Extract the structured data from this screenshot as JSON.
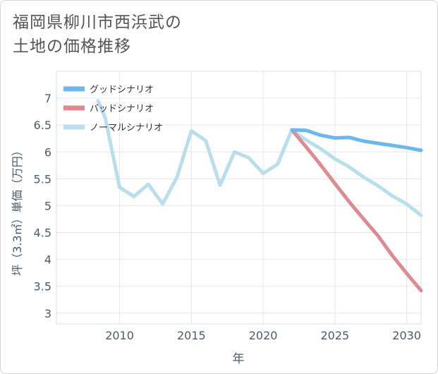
{
  "header": {
    "title_line1": "福岡県柳川市西浜武の",
    "title_line2": "土地の価格推移"
  },
  "chart_data": {
    "type": "line",
    "title": "福岡県柳川市西浜武の土地の価格推移",
    "xlabel": "年",
    "ylabel": "坪（3.3㎡）単価（万円）",
    "xlim": [
      2005.6,
      2031
    ],
    "ylim": [
      2.8,
      7.5
    ],
    "x_ticks": [
      2010,
      2015,
      2020,
      2025,
      2030
    ],
    "x_tick_labels": [
      "2010",
      "2015",
      "2020",
      "2025",
      "2030"
    ],
    "y_ticks": [
      3,
      3.5,
      4,
      4.5,
      5,
      5.5,
      6,
      6.5,
      7
    ],
    "y_tick_labels": [
      "3",
      "3.5",
      "4",
      "4.5",
      "5",
      "5.5",
      "6",
      "6.5",
      "7"
    ],
    "grid": true,
    "legend_position": "top-left",
    "series": [
      {
        "name": "グッドシナリオ",
        "color": "#6bb8ef",
        "x": [
          2022,
          2023,
          2024,
          2025,
          2026,
          2027,
          2028,
          2029,
          2030,
          2031
        ],
        "y": [
          6.41,
          6.4,
          6.31,
          6.26,
          6.27,
          6.2,
          6.16,
          6.12,
          6.08,
          6.03
        ]
      },
      {
        "name": "バッドシナリオ",
        "color": "#dd8a91",
        "x": [
          2022,
          2023,
          2024,
          2025,
          2026,
          2027,
          2028,
          2029,
          2030,
          2031
        ],
        "y": [
          6.41,
          6.09,
          5.76,
          5.41,
          5.07,
          4.75,
          4.44,
          4.07,
          3.74,
          3.42
        ]
      },
      {
        "name": "ノーマルシナリオ",
        "color": "#badfec",
        "x": [
          2008.5,
          2009,
          2010,
          2011,
          2012,
          2013,
          2014,
          2015,
          2016,
          2017,
          2018,
          2019,
          2020,
          2021,
          2022,
          2023,
          2024,
          2025,
          2026,
          2027,
          2028,
          2029,
          2030,
          2031
        ],
        "y": [
          6.95,
          6.63,
          5.34,
          5.17,
          5.4,
          5.03,
          5.53,
          6.39,
          6.21,
          5.38,
          6.0,
          5.89,
          5.6,
          5.77,
          6.41,
          6.22,
          6.06,
          5.87,
          5.72,
          5.53,
          5.37,
          5.18,
          5.03,
          4.82
        ]
      }
    ]
  }
}
